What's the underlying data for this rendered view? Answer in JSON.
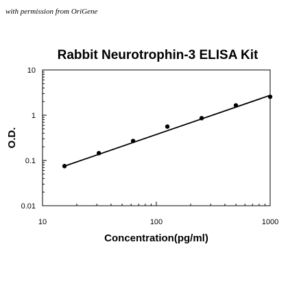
{
  "credit": "with permission from OriGene",
  "chart_data": {
    "type": "scatter",
    "title": "Rabbit Neurotrophin-3 ELISA Kit",
    "xlabel": "Concentration(pg/ml)",
    "ylabel": "O.D.",
    "x_scale": "log",
    "y_scale": "log",
    "xlim": [
      10,
      1000
    ],
    "ylim": [
      0.01,
      10
    ],
    "x_ticks": [
      "10",
      "100",
      "1000"
    ],
    "y_ticks": [
      "10",
      "1",
      "0.1",
      "0.01"
    ],
    "grid": false,
    "legend": false,
    "series": [
      {
        "x": [
          15.6,
          31.25,
          62.5,
          125,
          250,
          500,
          1000
        ],
        "y": [
          0.075,
          0.145,
          0.27,
          0.56,
          0.86,
          1.65,
          2.55
        ],
        "marker": "circle",
        "color": "#000000"
      }
    ],
    "fit_line": {
      "x": [
        15.6,
        1000
      ],
      "y": [
        0.075,
        2.75
      ],
      "color": "#000000"
    }
  }
}
